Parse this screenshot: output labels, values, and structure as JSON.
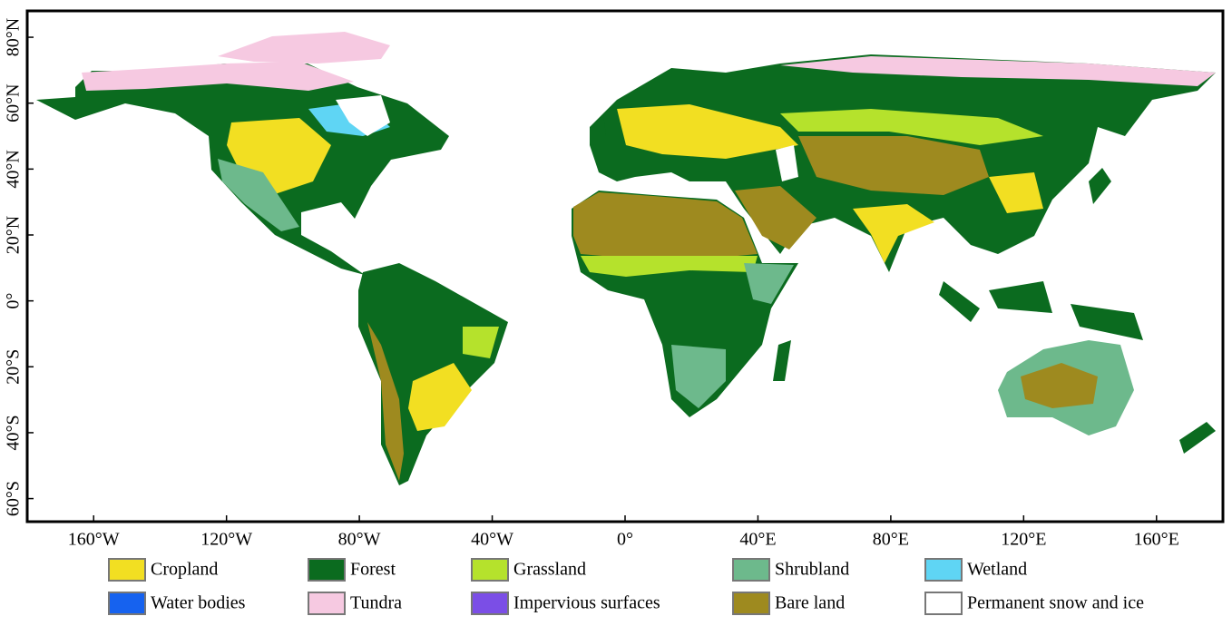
{
  "map": {
    "xlim": [
      -180,
      180
    ],
    "ylim": [
      -67,
      88
    ],
    "xticks": [
      {
        "value": -160,
        "label": "160°W"
      },
      {
        "value": -120,
        "label": "120°W"
      },
      {
        "value": -80,
        "label": "80°W"
      },
      {
        "value": -40,
        "label": "40°W"
      },
      {
        "value": 0,
        "label": "0°"
      },
      {
        "value": 40,
        "label": "40°E"
      },
      {
        "value": 80,
        "label": "80°E"
      },
      {
        "value": 120,
        "label": "120°E"
      },
      {
        "value": 160,
        "label": "160°E"
      }
    ],
    "yticks": [
      {
        "value": 80,
        "label": "80°N"
      },
      {
        "value": 60,
        "label": "60°N"
      },
      {
        "value": 40,
        "label": "40°N"
      },
      {
        "value": 20,
        "label": "20°N"
      },
      {
        "value": 0,
        "label": "0°"
      },
      {
        "value": -20,
        "label": "20°S"
      },
      {
        "value": -40,
        "label": "40°S"
      },
      {
        "value": -60,
        "label": "60°S"
      }
    ]
  },
  "legend": [
    {
      "label": "Cropland",
      "color": "#f2df22"
    },
    {
      "label": "Forest",
      "color": "#0b6b1f"
    },
    {
      "label": "Grassland",
      "color": "#b5e22c"
    },
    {
      "label": "Shrubland",
      "color": "#6db98c"
    },
    {
      "label": "Wetland",
      "color": "#5fd5f4"
    },
    {
      "label": "Water bodies",
      "color": "#1662ef"
    },
    {
      "label": "Tundra",
      "color": "#f6c9e1"
    },
    {
      "label": "Impervious surfaces",
      "color": "#7b4ee6"
    },
    {
      "label": "Bare land",
      "color": "#9e8a1f"
    },
    {
      "label": "Permanent snow and ice",
      "color": "#ffffff"
    }
  ]
}
